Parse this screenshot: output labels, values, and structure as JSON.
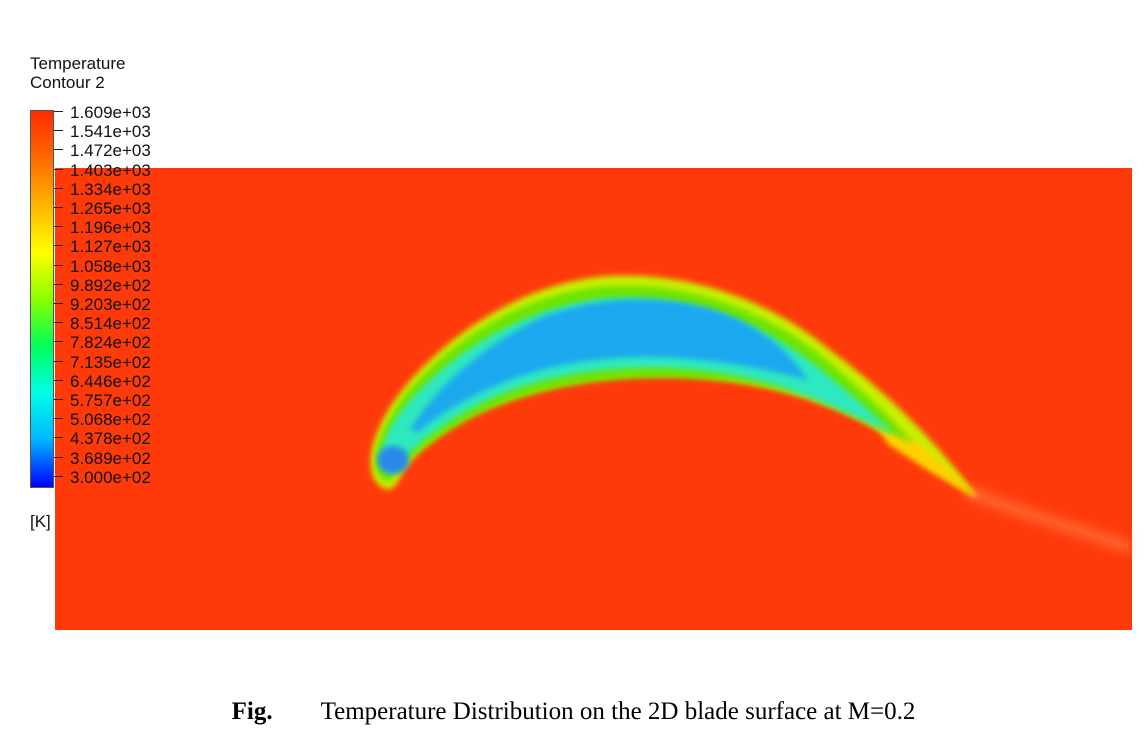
{
  "chart_data": {
    "type": "heatmap",
    "legend": {
      "title_lines": [
        "Temperature",
        "Contour 2"
      ],
      "unit": "[K]",
      "min": 300.0,
      "max": 1609.0,
      "ticks": [
        "1.609e+03",
        "1.541e+03",
        "1.472e+03",
        "1.403e+03",
        "1.334e+03",
        "1.265e+03",
        "1.196e+03",
        "1.127e+03",
        "1.058e+03",
        "9.892e+02",
        "9.203e+02",
        "8.514e+02",
        "7.824e+02",
        "7.135e+02",
        "6.446e+02",
        "5.757e+02",
        "5.068e+02",
        "4.378e+02",
        "3.689e+02",
        "3.000e+02"
      ],
      "colormap": [
        "#0000ff",
        "#00b4ff",
        "#00ffe8",
        "#00ff5a",
        "#8cff00",
        "#ffff00",
        "#ffb400",
        "#ff6a00",
        "#ff2a00"
      ]
    },
    "field": {
      "background_color": "#ff3a0a",
      "blade_core_color": "#1ea8ee",
      "blade_rim_color": "#2ee8c0",
      "blade_edge_color": "#6ee400",
      "blade_outer_color": "#c8f000",
      "trailing_edge_color": "#ffd000",
      "wake_color": "#ffb880"
    }
  },
  "caption": {
    "label": "Fig.",
    "text": "Temperature Distribution on the 2D blade surface at M=0.2"
  }
}
